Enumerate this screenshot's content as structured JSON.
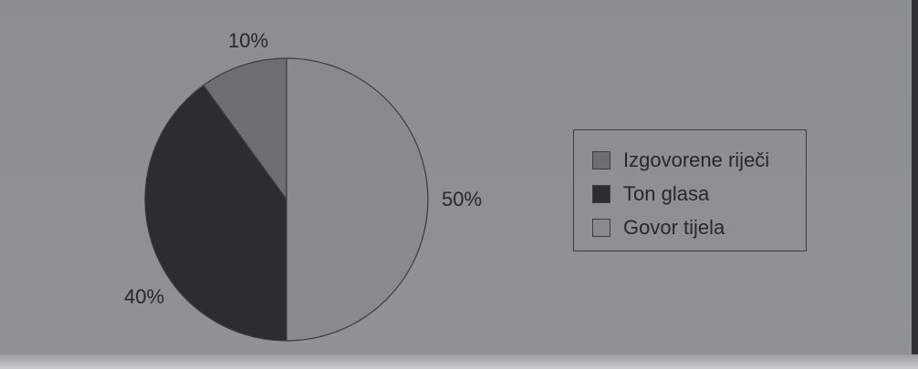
{
  "chart_data": {
    "type": "pie",
    "slices": [
      {
        "label": "Izgovorene riječi",
        "value": 10,
        "display": "10%",
        "color": "#6c6e70"
      },
      {
        "label": "Ton glasa",
        "value": 40,
        "display": "40%",
        "color": "#2b2d2f"
      },
      {
        "label": "Govor tijela",
        "value": 50,
        "display": "50%",
        "color": "#888b8c"
      }
    ],
    "start_angle_deg": 0,
    "direction": "counterclockwise",
    "legend_position": "right"
  }
}
